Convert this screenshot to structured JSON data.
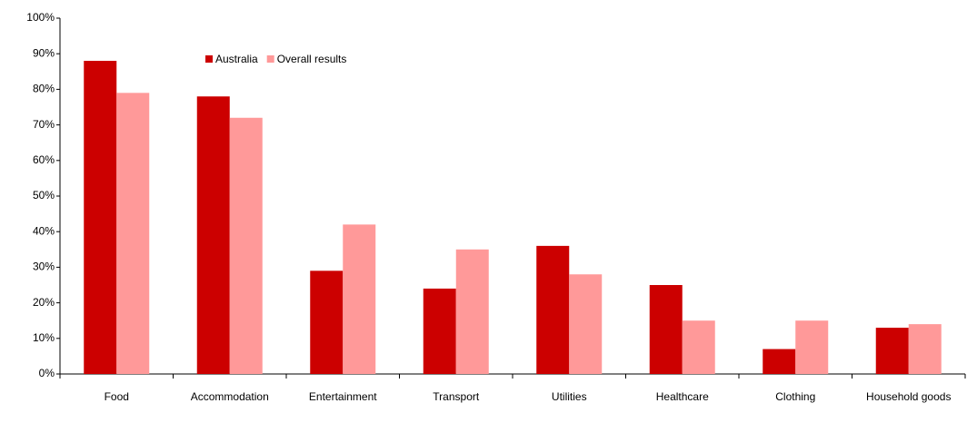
{
  "chart_data": {
    "type": "bar",
    "categories": [
      "Food",
      "Accommodation",
      "Entertainment",
      "Transport",
      "Utilities",
      "Healthcare",
      "Clothing",
      "Household goods"
    ],
    "series": [
      {
        "name": "Australia",
        "color": "#cc0000",
        "values": [
          88,
          78,
          29,
          24,
          36,
          25,
          7,
          13
        ]
      },
      {
        "name": "Overall results",
        "color": "#ff9999",
        "values": [
          79,
          72,
          42,
          35,
          28,
          15,
          15,
          14
        ]
      }
    ],
    "ylim": [
      0,
      100
    ],
    "yticks": [
      {
        "value": 0,
        "label": "0%"
      },
      {
        "value": 10,
        "label": "10%"
      },
      {
        "value": 20,
        "label": "20%"
      },
      {
        "value": 30,
        "label": "30%"
      },
      {
        "value": 40,
        "label": "40%"
      },
      {
        "value": 50,
        "label": "50%"
      },
      {
        "value": 60,
        "label": "60%"
      },
      {
        "value": 70,
        "label": "70%"
      },
      {
        "value": 80,
        "label": "80%"
      },
      {
        "value": 90,
        "label": "90%"
      },
      {
        "value": 100,
        "label": "100%"
      }
    ],
    "grid": false,
    "legend": "top-left"
  }
}
